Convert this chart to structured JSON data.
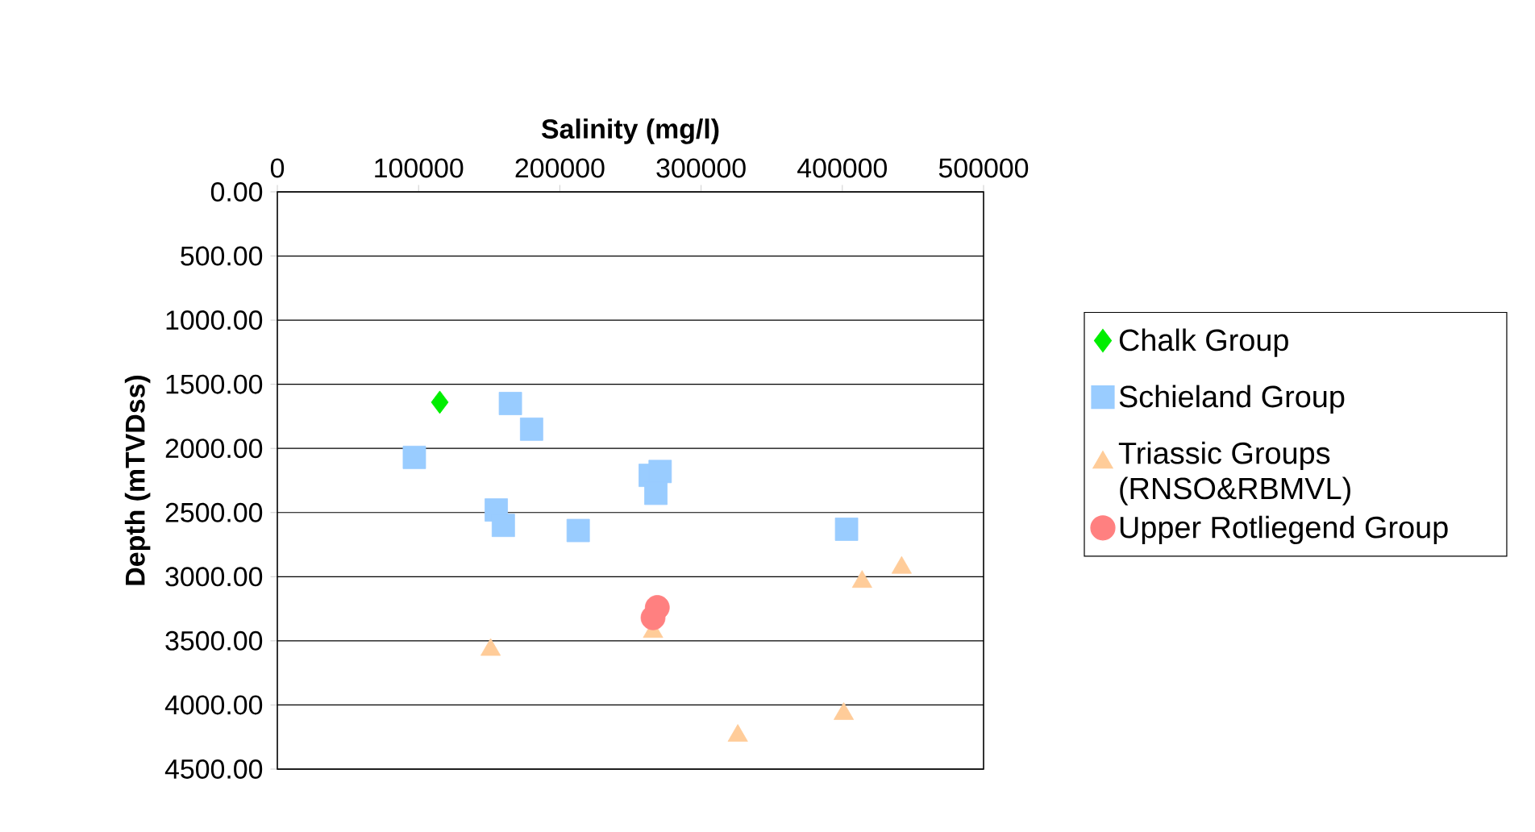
{
  "chart_data": {
    "type": "scatter",
    "xlabel": "Salinity (mg/l)",
    "ylabel": "Depth (mTVDss)",
    "xlim": [
      0,
      500000
    ],
    "xticks": [
      0,
      100000,
      200000,
      300000,
      400000,
      500000
    ],
    "ylim": [
      4500,
      0
    ],
    "yticks": [
      {
        "value": 0,
        "label": "0.00"
      },
      {
        "value": 500,
        "label": "500.00"
      },
      {
        "value": 1000,
        "label": "1000.00"
      },
      {
        "value": 1500,
        "label": "1500.00"
      },
      {
        "value": 2000,
        "label": "2000.00"
      },
      {
        "value": 2500,
        "label": "2500.00"
      },
      {
        "value": 3000,
        "label": "3000.00"
      },
      {
        "value": 3500,
        "label": "3500.00"
      },
      {
        "value": 4000,
        "label": "4000.00"
      },
      {
        "value": 4500,
        "label": "4500.00"
      }
    ],
    "grid": "y",
    "legend": "right",
    "series": [
      {
        "name": "Chalk Group",
        "color": "#00ee00",
        "marker": "diamond",
        "x": [
          115000
        ],
        "values": [
          1640
        ]
      },
      {
        "name": "Schieland Group",
        "color": "#99ccff",
        "marker": "square",
        "x": [
          165000,
          180000,
          97000,
          155000,
          160000,
          213000,
          264000,
          271000,
          268000,
          403000
        ],
        "values": [
          1650,
          1850,
          2070,
          2480,
          2600,
          2640,
          2210,
          2180,
          2350,
          2630
        ]
      },
      {
        "name": "Triassic Groups (RNSO&RBMVL)",
        "color": "#ffcc99",
        "marker": "triangle",
        "x": [
          151000,
          266000,
          326000,
          401000,
          414000,
          442000
        ],
        "values": [
          3570,
          3430,
          4240,
          4070,
          3040,
          2930
        ]
      },
      {
        "name": "Upper Rotliegend Group",
        "color": "#ff8080",
        "marker": "circle",
        "x": [
          269000,
          266000
        ],
        "values": [
          3240,
          3320
        ]
      }
    ]
  }
}
